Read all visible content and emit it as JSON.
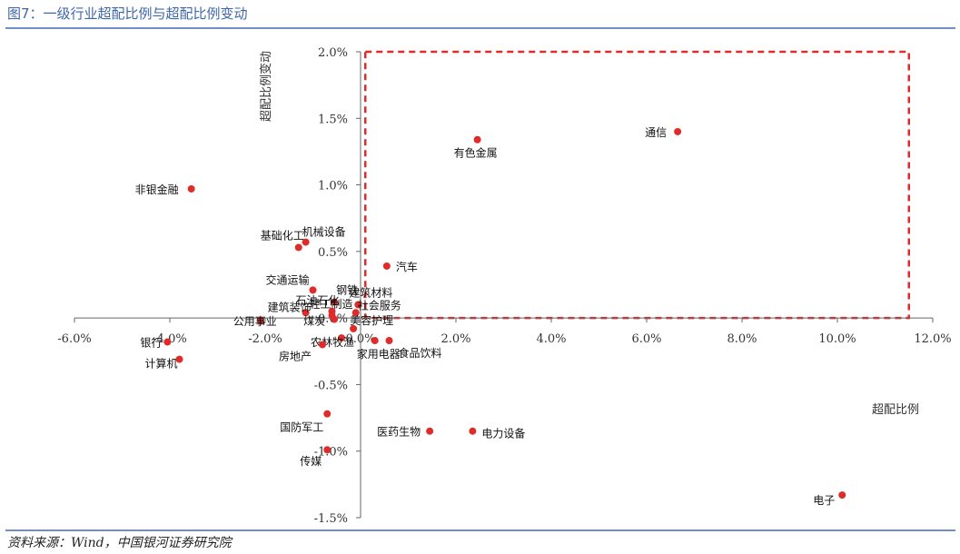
{
  "figure": {
    "title": "图7：一级行业超配比例与超配比例变动",
    "source": "资料来源：Wind，中国银河证券研究院"
  },
  "colors": {
    "accent": "#3f67a8",
    "point": "#e02b2b",
    "box": "#e02b2b",
    "axis": "#666666"
  },
  "chart_data": {
    "type": "scatter",
    "title": "一级行业超配比例与超配比例变动",
    "xlabel": "超配比例",
    "ylabel": "超配比例变动",
    "xlim": [
      -6.0,
      12.0
    ],
    "ylim": [
      -1.5,
      2.0
    ],
    "xticks": [
      "-6.0%",
      "-4.0%",
      "-2.0%",
      "0.0%",
      "2.0%",
      "4.0%",
      "6.0%",
      "8.0%",
      "10.0%",
      "12.0%"
    ],
    "yticks": [
      "2.0%",
      "1.5%",
      "1.0%",
      "0.5%",
      "0.0%",
      "-0.5%",
      "-1.0%",
      "-1.5%"
    ],
    "highlight_box": {
      "x0": 0.1,
      "x1": 11.5,
      "y0": 0.0,
      "y1": 2.0
    },
    "points": [
      {
        "name": "通信",
        "x": 6.65,
        "y": 1.4
      },
      {
        "name": "有色金属",
        "x": 2.45,
        "y": 1.34
      },
      {
        "name": "非银金融",
        "x": -3.55,
        "y": 0.97
      },
      {
        "name": "机械设备",
        "x": -1.15,
        "y": 0.57
      },
      {
        "name": "基础化工",
        "x": -1.3,
        "y": 0.53
      },
      {
        "name": "汽车",
        "x": 0.55,
        "y": 0.39
      },
      {
        "name": "交通运输",
        "x": -1.0,
        "y": 0.21
      },
      {
        "name": "钢铁",
        "x": -0.55,
        "y": 0.12
      },
      {
        "name": "建筑材料",
        "x": -0.05,
        "y": 0.1
      },
      {
        "name": "石油石化",
        "x": -0.6,
        "y": 0.05
      },
      {
        "name": "社会服务",
        "x": -0.1,
        "y": 0.04
      },
      {
        "name": "建筑装饰",
        "x": -1.15,
        "y": 0.04
      },
      {
        "name": "轻工制造",
        "x": -0.6,
        "y": 0.02
      },
      {
        "name": "煤炭",
        "x": -0.55,
        "y": -0.01
      },
      {
        "name": "公用事业",
        "x": -2.1,
        "y": -0.02
      },
      {
        "name": "美容护理",
        "x": -0.15,
        "y": -0.08
      },
      {
        "name": "农林牧渔",
        "x": -0.4,
        "y": -0.15
      },
      {
        "name": "家用电器",
        "x": 0.3,
        "y": -0.17
      },
      {
        "name": "食品饮料",
        "x": 0.6,
        "y": -0.17
      },
      {
        "name": "房地产",
        "x": -0.8,
        "y": -0.2
      },
      {
        "name": "银行",
        "x": -4.05,
        "y": -0.18
      },
      {
        "name": "计算机",
        "x": -3.8,
        "y": -0.31
      },
      {
        "name": "国防军工",
        "x": -0.7,
        "y": -0.72
      },
      {
        "name": "医药生物",
        "x": 1.45,
        "y": -0.85
      },
      {
        "name": "电力设备",
        "x": 2.35,
        "y": -0.85
      },
      {
        "name": "传媒",
        "x": -0.7,
        "y": -0.99
      },
      {
        "name": "电子",
        "x": 10.1,
        "y": -1.33
      }
    ]
  }
}
